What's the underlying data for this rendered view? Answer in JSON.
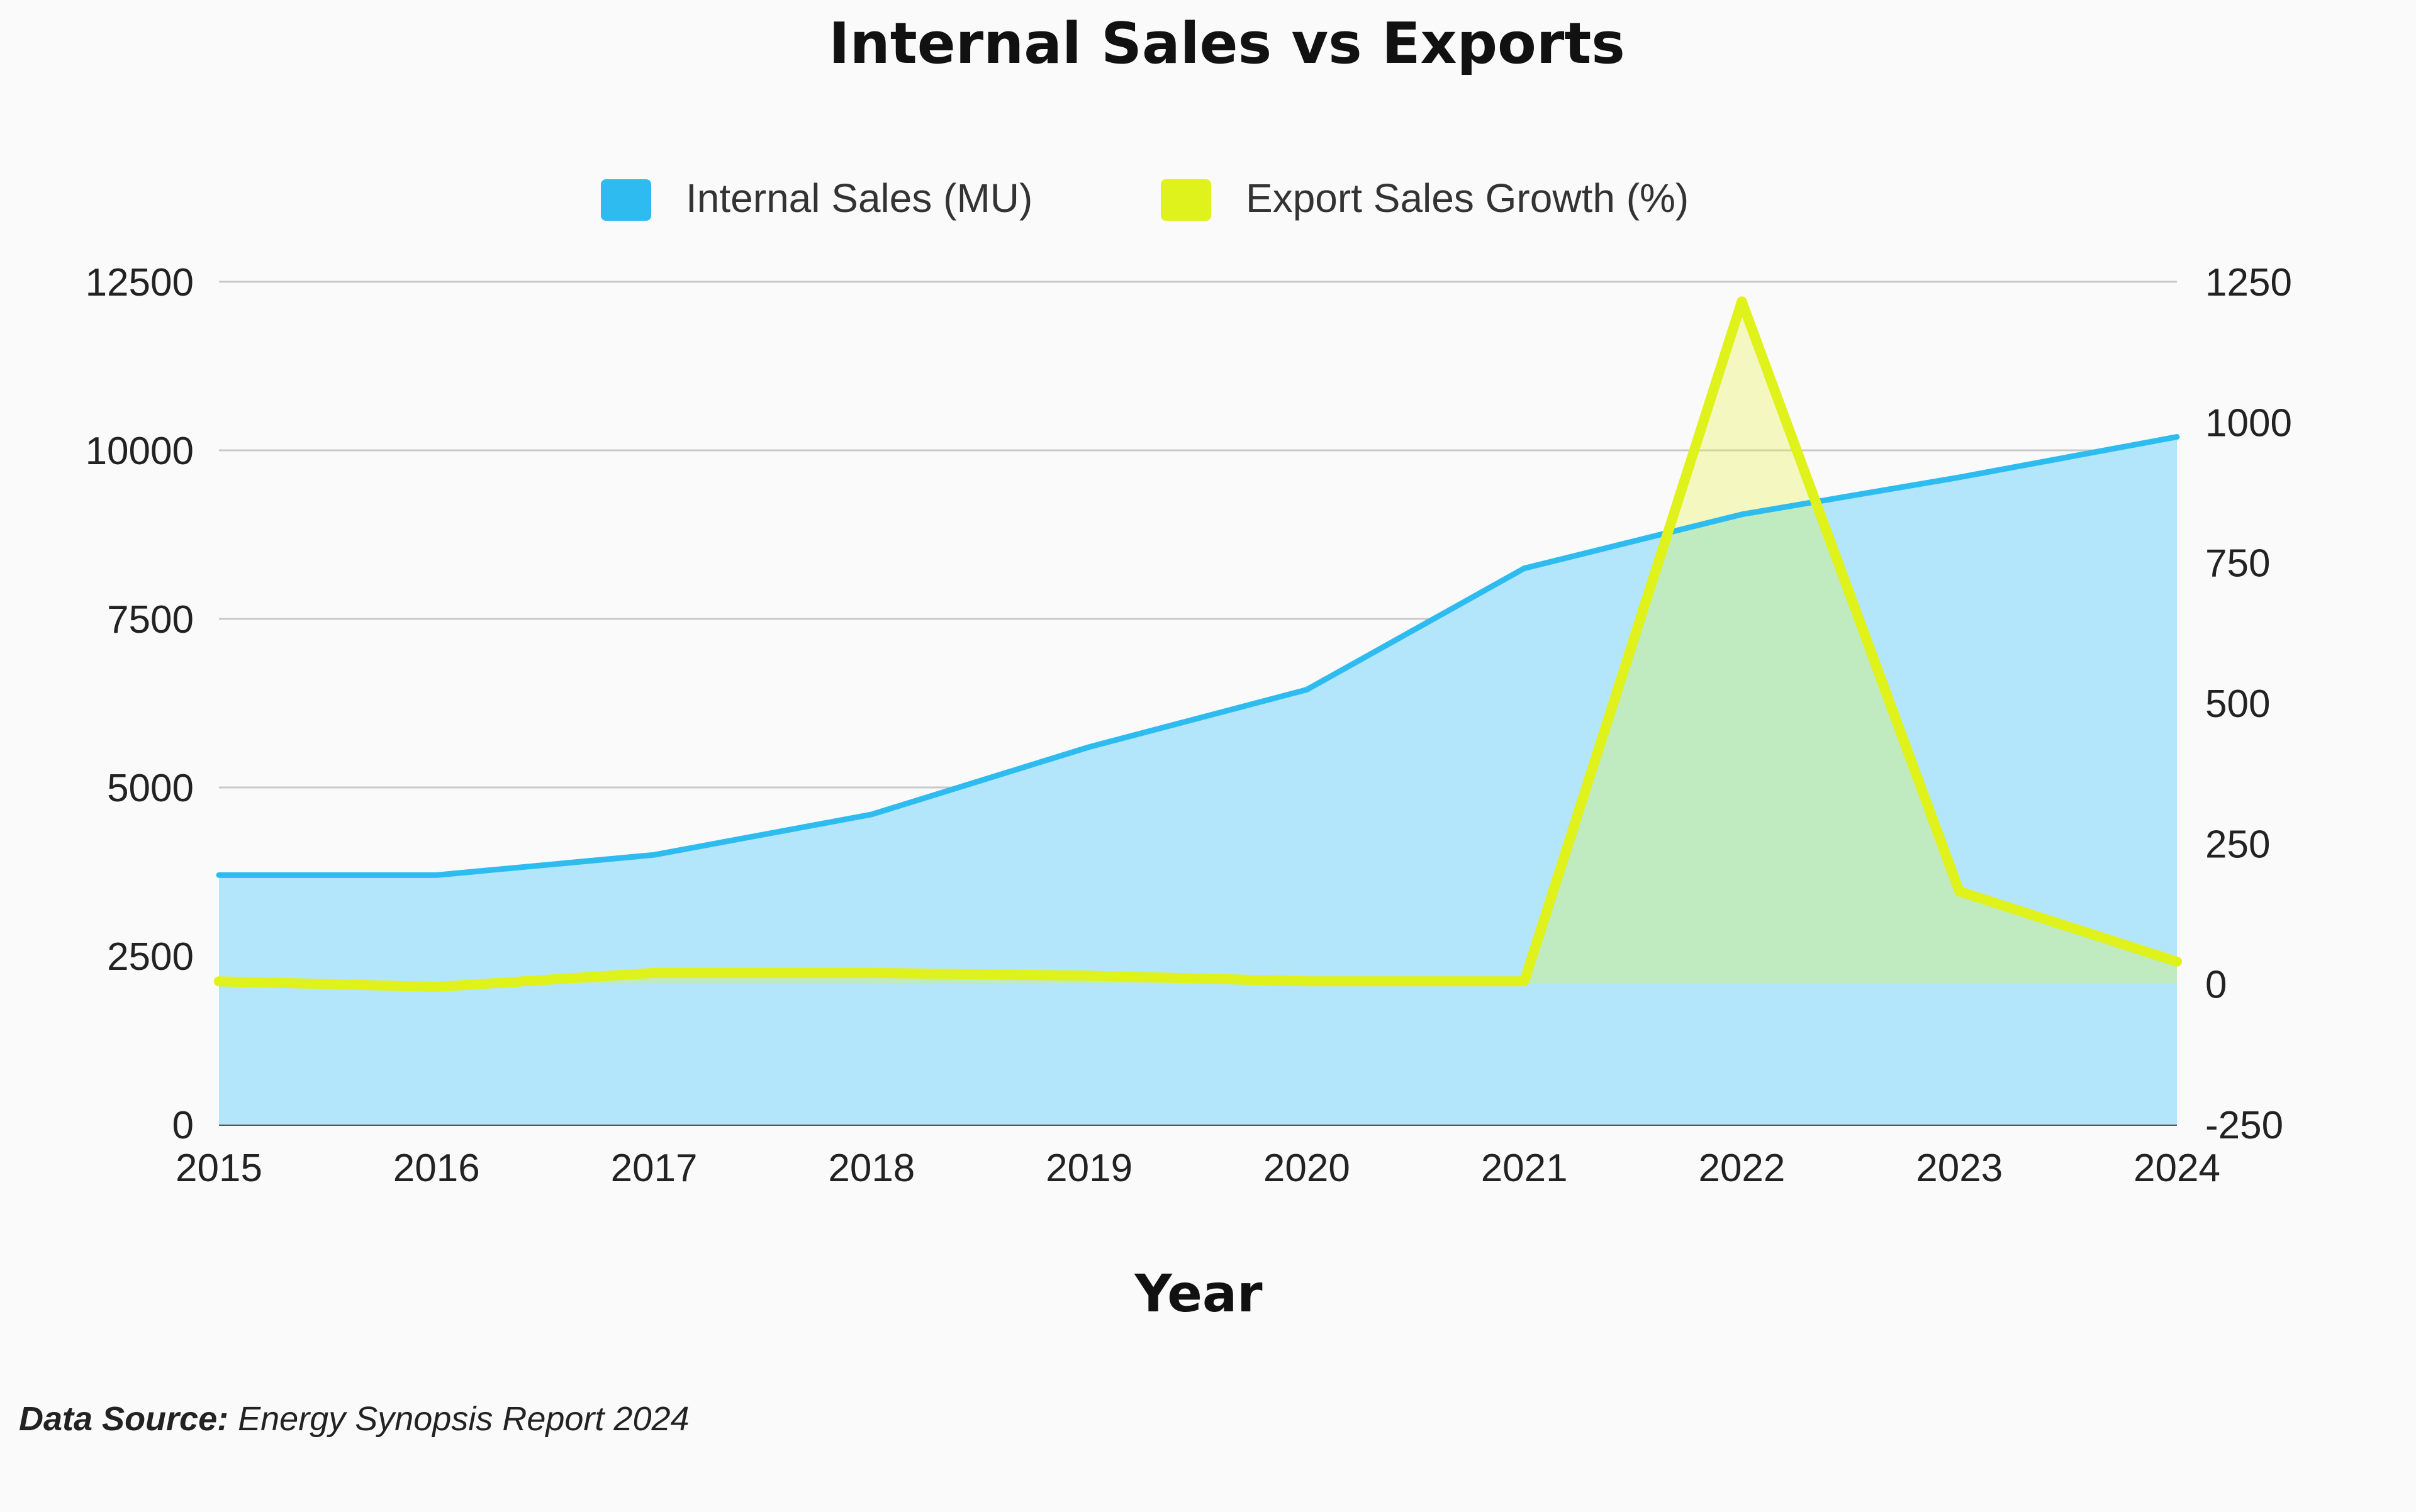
{
  "chart_data": {
    "type": "area",
    "title": "Internal Sales vs Exports",
    "xlabel": "Year",
    "ylabel": "",
    "y2label": "",
    "x": [
      "2015",
      "2016",
      "2017",
      "2018",
      "2019",
      "2020",
      "2021",
      "2022",
      "2023",
      "2024"
    ],
    "ylim": [
      0,
      12500
    ],
    "y2lim": [
      -250,
      1250
    ],
    "yticks": [
      "0",
      "2500",
      "5000",
      "7500",
      "10000",
      "12500"
    ],
    "y2ticks": [
      "-250",
      "0",
      "250",
      "500",
      "750",
      "1000",
      "1250"
    ],
    "grid": true,
    "legend_position": "top-center",
    "series": [
      {
        "name": "Internal Sales (MU)",
        "axis": "left",
        "color": "#2ebcf0",
        "fill": "#b3e6fa",
        "values": [
          3700,
          3700,
          4000,
          4600,
          5600,
          6450,
          8250,
          9050,
          9600,
          10200
        ]
      },
      {
        "name": "Export Sales Growth (%)",
        "axis": "right",
        "color": "#dff21c",
        "fill": "rgba(226,245,40,0.28)",
        "values": [
          5,
          -5,
          20,
          20,
          15,
          5,
          5,
          1215,
          165,
          40
        ]
      }
    ]
  },
  "source": {
    "label": "Data Source:",
    "text": "Energy Synopsis Report 2024"
  }
}
